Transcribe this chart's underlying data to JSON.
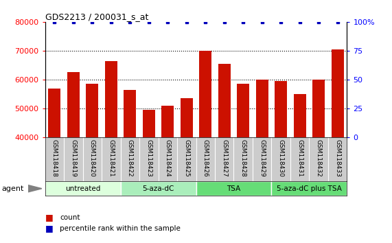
{
  "title": "GDS2213 / 200031_s_at",
  "samples": [
    "GSM118418",
    "GSM118419",
    "GSM118420",
    "GSM118421",
    "GSM118422",
    "GSM118423",
    "GSM118424",
    "GSM118425",
    "GSM118426",
    "GSM118427",
    "GSM118428",
    "GSM118429",
    "GSM118430",
    "GSM118431",
    "GSM118432",
    "GSM118433"
  ],
  "counts": [
    57000,
    62500,
    58500,
    66500,
    56500,
    49500,
    51000,
    53500,
    70000,
    65500,
    58500,
    60000,
    59500,
    55000,
    60000,
    70500
  ],
  "percentile_rank": [
    100,
    100,
    100,
    100,
    100,
    100,
    100,
    100,
    100,
    100,
    100,
    100,
    100,
    100,
    100,
    100
  ],
  "bar_color": "#cc1100",
  "dot_color": "#0000bb",
  "ylim_left": [
    40000,
    80000
  ],
  "ylim_right": [
    0,
    100
  ],
  "yticks_left": [
    40000,
    50000,
    60000,
    70000,
    80000
  ],
  "yticks_right": [
    0,
    25,
    50,
    75,
    100
  ],
  "groups": [
    {
      "label": "untreated",
      "start": 0,
      "end": 4,
      "color": "#ddffdd"
    },
    {
      "label": "5-aza-dC",
      "start": 4,
      "end": 8,
      "color": "#aaeebb"
    },
    {
      "label": "TSA",
      "start": 8,
      "end": 12,
      "color": "#66dd77"
    },
    {
      "label": "5-aza-dC plus TSA",
      "start": 12,
      "end": 16,
      "color": "#66dd77"
    }
  ],
  "tick_area_color": "#cccccc",
  "plot_bg_color": "#ffffff",
  "legend_count_color": "#cc1100",
  "legend_rank_color": "#0000bb",
  "agent_label": "agent"
}
